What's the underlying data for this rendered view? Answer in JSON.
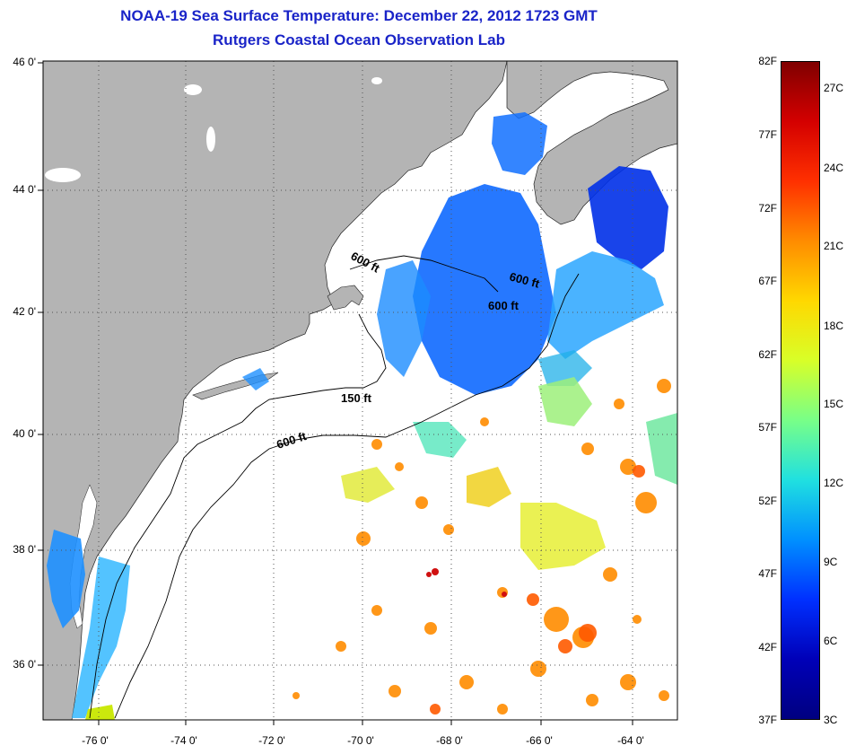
{
  "header": {
    "title": "NOAA-19 Sea Surface Temperature:  December 22, 2012 1723 GMT",
    "subtitle": "Rutgers Coastal Ocean Observation Lab"
  },
  "axes": {
    "lat_labels": [
      "46 0'",
      "44 0'",
      "42 0'",
      "40 0'",
      "38 0'",
      "36 0'"
    ],
    "lon_labels": [
      "-76 0'",
      "-74 0'",
      "-72 0'",
      "-70 0'",
      "-68 0'",
      "-66 0'",
      "-64 0'"
    ]
  },
  "contours": {
    "label_150": "150 ft",
    "label_600": "600 ft"
  },
  "colorbar": {
    "fahrenheit": [
      "82F",
      "77F",
      "72F",
      "67F",
      "62F",
      "57F",
      "52F",
      "47F",
      "42F",
      "37F"
    ],
    "celsius": [
      "27C",
      "24C",
      "21C",
      "18C",
      "15C",
      "12C",
      "9C",
      "6C",
      "3C"
    ],
    "colors": [
      "#800000",
      "#d40000",
      "#ff3000",
      "#ff8c00",
      "#ffd800",
      "#d8ff28",
      "#78ff88",
      "#20e0e0",
      "#0090ff",
      "#0030ff",
      "#0000b8",
      "#000080"
    ]
  },
  "map_colors": {
    "land": "#b4b4b4",
    "water": "#ffffff",
    "grid": "#555555"
  }
}
